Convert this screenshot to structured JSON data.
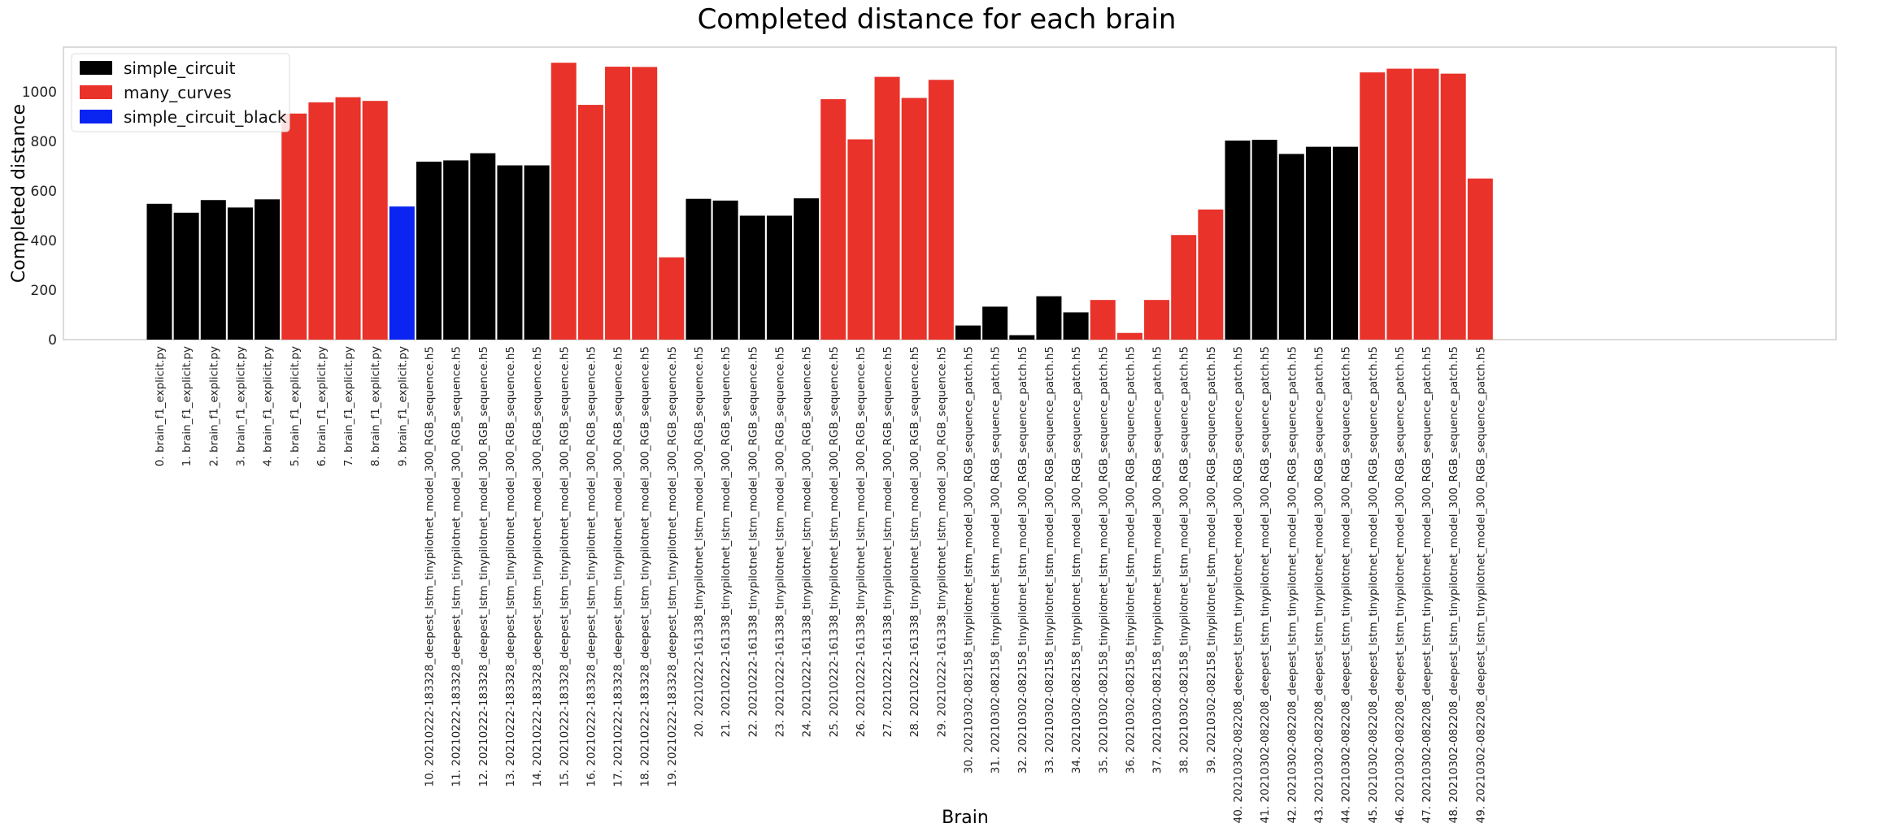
{
  "chart_data": {
    "type": "bar",
    "title": "Completed distance for each brain",
    "xlabel": "Brain",
    "ylabel": "Completed distance",
    "ylim": [
      0,
      1180
    ],
    "yticks": [
      0,
      200,
      400,
      600,
      800,
      1000
    ],
    "grid": false,
    "legend_position": "top-left",
    "legend": [
      {
        "label": "simple_circuit",
        "color": "#000000"
      },
      {
        "label": "many_curves",
        "color": "#e8322a"
      },
      {
        "label": "simple_circuit_black",
        "color": "#0a24f2"
      }
    ],
    "categories": [
      "0. brain_f1_explicit.py",
      "1. brain_f1_explicit.py",
      "2. brain_f1_explicit.py",
      "3. brain_f1_explicit.py",
      "4. brain_f1_explicit.py",
      "5. brain_f1_explicit.py",
      "6. brain_f1_explicit.py",
      "7. brain_f1_explicit.py",
      "8. brain_f1_explicit.py",
      "9. brain_f1_explicit.py",
      "10. 20210222-183328_deepest_lstm_tinypilotnet_model_300_RGB_sequence.h5",
      "11. 20210222-183328_deepest_lstm_tinypilotnet_model_300_RGB_sequence.h5",
      "12. 20210222-183328_deepest_lstm_tinypilotnet_model_300_RGB_sequence.h5",
      "13. 20210222-183328_deepest_lstm_tinypilotnet_model_300_RGB_sequence.h5",
      "14. 20210222-183328_deepest_lstm_tinypilotnet_model_300_RGB_sequence.h5",
      "15. 20210222-183328_deepest_lstm_tinypilotnet_model_300_RGB_sequence.h5",
      "16. 20210222-183328_deepest_lstm_tinypilotnet_model_300_RGB_sequence.h5",
      "17. 20210222-183328_deepest_lstm_tinypilotnet_model_300_RGB_sequence.h5",
      "18. 20210222-183328_deepest_lstm_tinypilotnet_model_300_RGB_sequence.h5",
      "19. 20210222-183328_deepest_lstm_tinypilotnet_model_300_RGB_sequence.h5",
      "20. 20210222-161338_tinypilotnet_lstm_model_300_RGB_sequence.h5",
      "21. 20210222-161338_tinypilotnet_lstm_model_300_RGB_sequence.h5",
      "22. 20210222-161338_tinypilotnet_lstm_model_300_RGB_sequence.h5",
      "23. 20210222-161338_tinypilotnet_lstm_model_300_RGB_sequence.h5",
      "24. 20210222-161338_tinypilotnet_lstm_model_300_RGB_sequence.h5",
      "25. 20210222-161338_tinypilotnet_lstm_model_300_RGB_sequence.h5",
      "26. 20210222-161338_tinypilotnet_lstm_model_300_RGB_sequence.h5",
      "27. 20210222-161338_tinypilotnet_lstm_model_300_RGB_sequence.h5",
      "28. 20210222-161338_tinypilotnet_lstm_model_300_RGB_sequence.h5",
      "29. 20210222-161338_tinypilotnet_lstm_model_300_RGB_sequence.h5",
      "30. 20210302-082158_tinypilotnet_lstm_model_300_RGB_sequence_patch.h5",
      "31. 20210302-082158_tinypilotnet_lstm_model_300_RGB_sequence_patch.h5",
      "32. 20210302-082158_tinypilotnet_lstm_model_300_RGB_sequence_patch.h5",
      "33. 20210302-082158_tinypilotnet_lstm_model_300_RGB_sequence_patch.h5",
      "34. 20210302-082158_tinypilotnet_lstm_model_300_RGB_sequence_patch.h5",
      "35. 20210302-082158_tinypilotnet_lstm_model_300_RGB_sequence_patch.h5",
      "36. 20210302-082158_tinypilotnet_lstm_model_300_RGB_sequence_patch.h5",
      "37. 20210302-082158_tinypilotnet_lstm_model_300_RGB_sequence_patch.h5",
      "38. 20210302-082158_tinypilotnet_lstm_model_300_RGB_sequence_patch.h5",
      "39. 20210302-082158_tinypilotnet_lstm_model_300_RGB_sequence_patch.h5",
      "40. 20210302-082208_deepest_lstm_tinypilotnet_model_300_RGB_sequence_patch.h5",
      "41. 20210302-082208_deepest_lstm_tinypilotnet_model_300_RGB_sequence_patch.h5",
      "42. 20210302-082208_deepest_lstm_tinypilotnet_model_300_RGB_sequence_patch.h5",
      "43. 20210302-082208_deepest_lstm_tinypilotnet_model_300_RGB_sequence_patch.h5",
      "44. 20210302-082208_deepest_lstm_tinypilotnet_model_300_RGB_sequence_patch.h5",
      "45. 20210302-082208_deepest_lstm_tinypilotnet_model_300_RGB_sequence_patch.h5",
      "46. 20210302-082208_deepest_lstm_tinypilotnet_model_300_RGB_sequence_patch.h5",
      "47. 20210302-082208_deepest_lstm_tinypilotnet_model_300_RGB_sequence_patch.h5",
      "48. 20210302-082208_deepest_lstm_tinypilotnet_model_300_RGB_sequence_patch.h5",
      "49. 20210302-082208_deepest_lstm_tinypilotnet_model_300_RGB_sequence_patch.h5"
    ],
    "values": [
      548,
      512,
      563,
      533,
      566,
      912,
      957,
      978,
      963,
      537,
      718,
      723,
      752,
      703,
      703,
      1117,
      947,
      1101,
      1100,
      332,
      568,
      561,
      500,
      500,
      570,
      970,
      808,
      1060,
      975,
      1048,
      57,
      133,
      18,
      175,
      110,
      160,
      27,
      160,
      422,
      525,
      803,
      806,
      749,
      778,
      778,
      1078,
      1093,
      1093,
      1073,
      650
    ],
    "groups": [
      0,
      0,
      0,
      0,
      0,
      1,
      1,
      1,
      1,
      2,
      0,
      0,
      0,
      0,
      0,
      1,
      1,
      1,
      1,
      1,
      0,
      0,
      0,
      0,
      0,
      1,
      1,
      1,
      1,
      1,
      0,
      0,
      0,
      0,
      0,
      1,
      1,
      1,
      1,
      1,
      0,
      0,
      0,
      0,
      0,
      1,
      1,
      1,
      1,
      1
    ]
  }
}
